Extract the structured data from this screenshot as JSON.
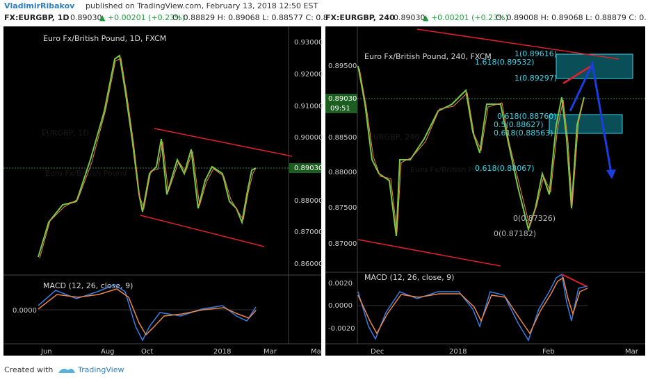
{
  "header": {
    "author": "VladimirRibakov",
    "text": "published on TradingView.com, February 13, 2018 12:50 EST"
  },
  "panels": [
    {
      "symbol": "FX:EURGBP, 1D",
      "price": "0.89030",
      "change": "▲ +0.00201 (+0.23%)",
      "ohlc": "O: 0.88829 H: 0.89068 L: 0.88577 C: 0.8",
      "title": "Euro Fx/British Pound, 1D, FXCM",
      "watermark": "EURGBP, 1D",
      "watermark_sub": "Euro Fx/British Pound",
      "price_ticks": [
        "0.93000",
        "0.92000",
        "0.91000",
        "0.90000",
        "0.88000",
        "0.87000",
        "0.86000"
      ],
      "current_price": "0.89030",
      "macd": "MACD (12, 26, close, 9)",
      "macd_ticks": [
        "0.0000"
      ],
      "x_labels": [
        "Jun",
        "Aug",
        "Oct",
        "2018",
        "Mar",
        "Ma"
      ]
    },
    {
      "symbol": "FX:EURGBP, 240",
      "price": "0.89030",
      "change": "▲ +0.00201 (+0.23%)",
      "ohlc": "O: 0.89008 H: 0.89068 L: 0.88879 C: 0.",
      "title": "Euro Fx/British Pound, 240, FXCM",
      "watermark": "EURGBP, 240",
      "watermark_sub": "Euro Fx/British Pound",
      "price_ticks": [
        "0.89500",
        "0.88500",
        "0.88000",
        "0.87500",
        "0.87000"
      ],
      "current_price": "0.89030",
      "countdown": "09:51",
      "macd": "MACD (12, 26, close, 9)",
      "macd_ticks": [
        "0.0020",
        "0.0000",
        "-0.0020"
      ],
      "x_labels": [
        "Dec",
        "2018",
        "Feb",
        "Mar"
      ],
      "fib_labels": [
        "1(0.89616)",
        "1.618(0.89532)",
        "1(0.89297)",
        "0.618(0.88760)",
        "0.5(0.88627)",
        "0.618(0.88563)",
        "0.618(0.88067)",
        "0(0.87326)",
        "0(0.87182)"
      ]
    }
  ],
  "footer": {
    "text": "Created with",
    "brand": "TradingView"
  }
}
